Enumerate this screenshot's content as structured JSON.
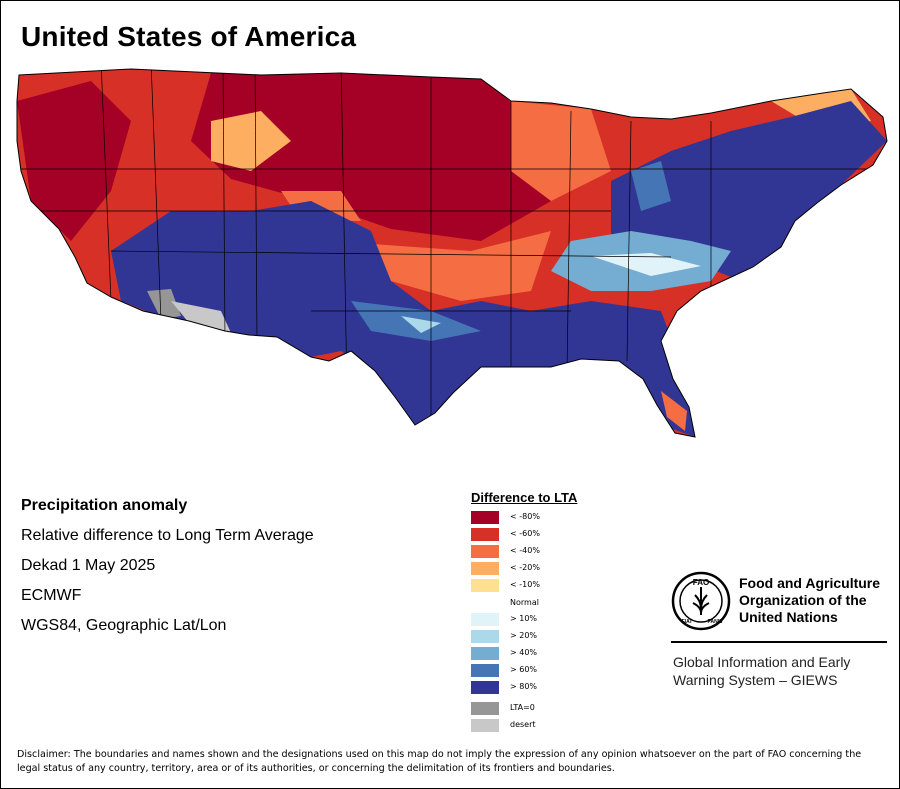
{
  "title": "United States of America",
  "info": {
    "heading": "Precipitation anomaly",
    "line1": "Relative difference to Long Term Average",
    "line2": "Dekad 1 May 2025",
    "line3": "ECMWF",
    "line4": "WGS84, Geographic Lat/Lon"
  },
  "legend": {
    "title": "Difference to LTA",
    "items": [
      {
        "label": "< -80%",
        "color": "#a50026"
      },
      {
        "label": "< -60%",
        "color": "#d73027"
      },
      {
        "label": "< -40%",
        "color": "#f46d43"
      },
      {
        "label": "< -20%",
        "color": "#fdae61"
      },
      {
        "label": "< -10%",
        "color": "#fee090"
      },
      {
        "label": "Normal",
        "color": "#ffffff"
      },
      {
        "label": "> 10%",
        "color": "#e0f3f8"
      },
      {
        "label": "> 20%",
        "color": "#abd9e9"
      },
      {
        "label": "> 40%",
        "color": "#74add1"
      },
      {
        "label": "> 60%",
        "color": "#4575b4"
      },
      {
        "label": "> 80%",
        "color": "#313695"
      }
    ],
    "extra": [
      {
        "label": "LTA=0",
        "color": "#969696"
      },
      {
        "label": "desert",
        "color": "#c8c8c8"
      }
    ]
  },
  "fao": {
    "org_line1": "Food and Agriculture",
    "org_line2": "Organization of the",
    "org_line3": "United Nations",
    "giews_line1": "Global Information and Early",
    "giews_line2": "Warning System – GIEWS",
    "logo_text": "FAO",
    "logo_ring_left": "FIAT",
    "logo_ring_right": "PANIS"
  },
  "disclaimer": "Disclaimer: The boundaries and names shown and the designations used on this map do not imply the expression of any opinion whatsoever on the part of FAO concerning the legal status of any country, territory, area or of its authorities, or concerning the delimitation of its frontiers and boundaries."
}
